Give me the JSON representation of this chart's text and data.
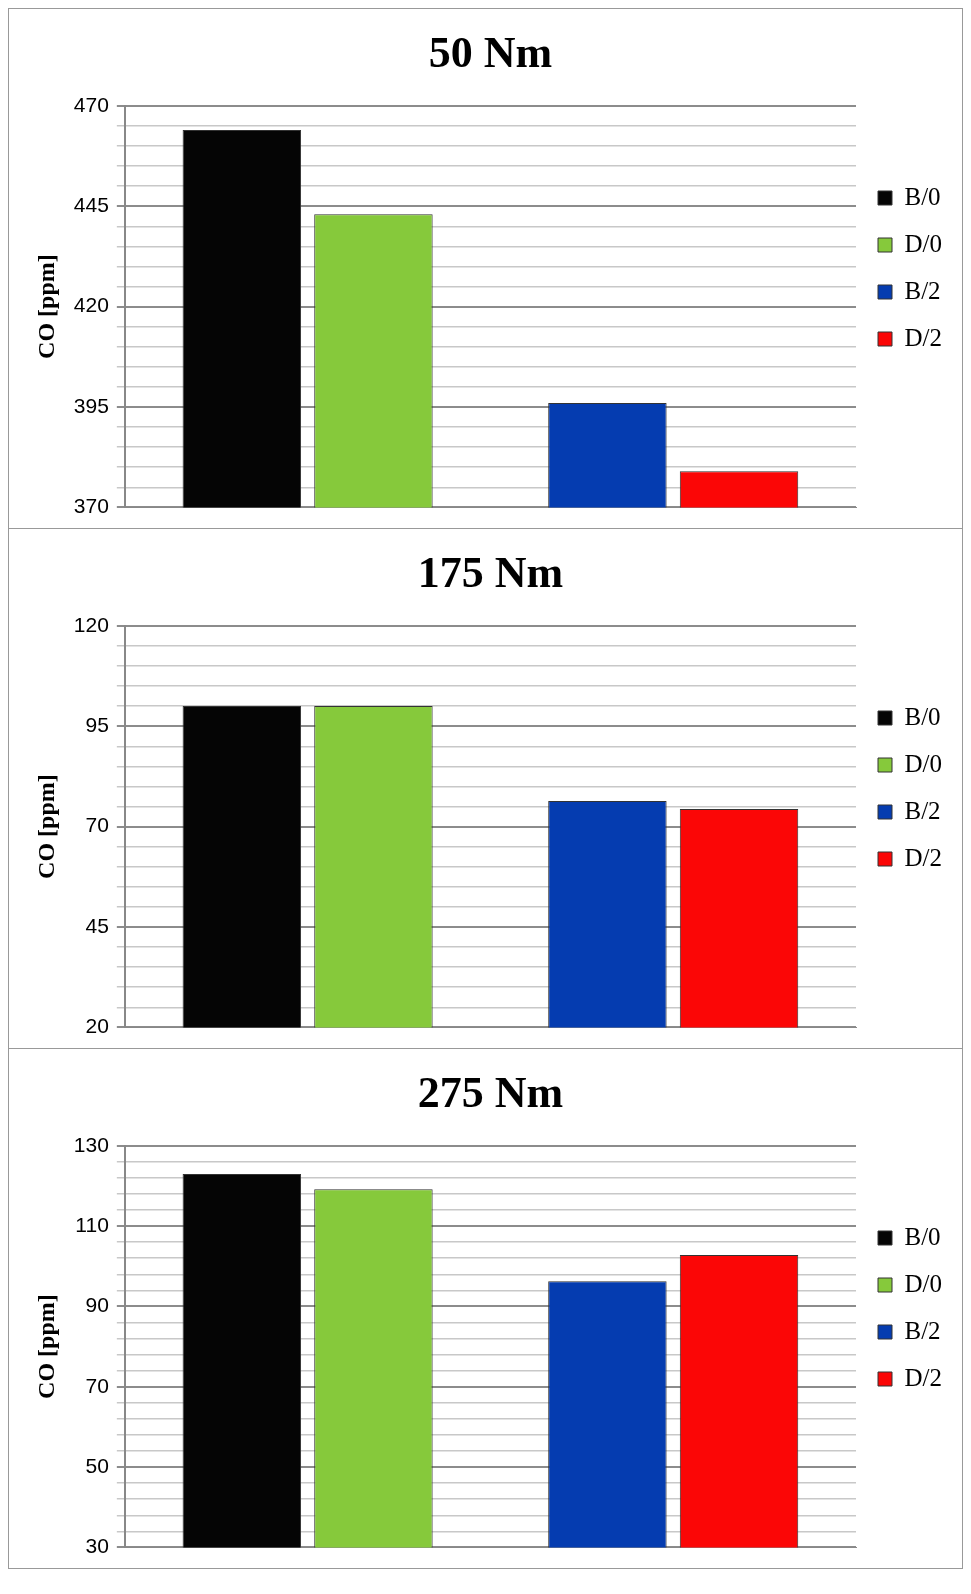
{
  "chart_data": [
    {
      "type": "bar",
      "title": "50 Nm",
      "ylabel": "CO [ppm]",
      "categories": [
        null,
        null
      ],
      "series": [
        {
          "name": "B/0",
          "color": "#050505",
          "values": [
            464,
            null
          ]
        },
        {
          "name": "D/0",
          "color": "#86c93b",
          "values": [
            443,
            null
          ]
        },
        {
          "name": "B/2",
          "color": "#053cb0",
          "values": [
            null,
            396
          ]
        },
        {
          "name": "D/2",
          "color": "#fb0606",
          "values": [
            null,
            379
          ]
        }
      ],
      "ylim": [
        370,
        470
      ],
      "yticks": [
        370,
        {
          "value": 375,
          "label": null
        },
        {
          "value": 380,
          "label": null
        },
        {
          "value": 385,
          "label": null
        },
        {
          "value": 390,
          "label": null
        },
        395,
        {
          "value": 400,
          "label": null
        },
        {
          "value": 405,
          "label": null
        },
        {
          "value": 410,
          "label": null
        },
        {
          "value": 415,
          "label": null
        },
        420,
        {
          "value": 425,
          "label": null
        },
        {
          "value": 430,
          "label": null
        },
        {
          "value": 435,
          "label": null
        },
        {
          "value": 440,
          "label": null
        },
        445,
        {
          "value": 450,
          "label": null
        },
        {
          "value": 455,
          "label": null
        },
        {
          "value": 460,
          "label": null
        },
        {
          "value": 465,
          "label": null
        },
        470
      ],
      "grid": "y",
      "legend": "right"
    },
    {
      "type": "bar",
      "title": "175 Nm",
      "ylabel": "CO [ppm]",
      "categories": [
        null,
        null
      ],
      "series": [
        {
          "name": "B/0",
          "color": "#050505",
          "values": [
            100,
            null
          ]
        },
        {
          "name": "D/0",
          "color": "#86c93b",
          "values": [
            100,
            null
          ]
        },
        {
          "name": "B/2",
          "color": "#053cb0",
          "values": [
            null,
            76.4
          ]
        },
        {
          "name": "D/2",
          "color": "#fb0606",
          "values": [
            null,
            74.4
          ]
        }
      ],
      "ylim": [
        20,
        120
      ],
      "yticks": [
        20,
        {
          "value": 25,
          "label": null
        },
        {
          "value": 30,
          "label": null
        },
        {
          "value": 35,
          "label": null
        },
        {
          "value": 40,
          "label": null
        },
        45,
        {
          "value": 50,
          "label": null
        },
        {
          "value": 55,
          "label": null
        },
        {
          "value": 60,
          "label": null
        },
        {
          "value": 65,
          "label": null
        },
        70,
        {
          "value": 75,
          "label": null
        },
        {
          "value": 80,
          "label": null
        },
        {
          "value": 85,
          "label": null
        },
        {
          "value": 90,
          "label": null
        },
        95,
        {
          "value": 100,
          "label": null
        },
        {
          "value": 105,
          "label": null
        },
        {
          "value": 110,
          "label": null
        },
        {
          "value": 115,
          "label": null
        },
        120
      ],
      "grid": "y",
      "legend": "right"
    },
    {
      "type": "bar",
      "title": "275 Nm",
      "ylabel": "CO [ppm]",
      "categories": [
        null,
        null
      ],
      "series": [
        {
          "name": "B/0",
          "color": "#050505",
          "values": [
            123,
            null
          ]
        },
        {
          "name": "D/0",
          "color": "#86c93b",
          "values": [
            119.2,
            null
          ]
        },
        {
          "name": "B/2",
          "color": "#053cb0",
          "values": [
            null,
            96.3
          ]
        },
        {
          "name": "D/2",
          "color": "#fb0606",
          "values": [
            null,
            102.8
          ]
        }
      ],
      "ylim": [
        30,
        130
      ],
      "yticks": [
        30,
        {
          "value": 34,
          "label": null
        },
        {
          "value": 38,
          "label": null
        },
        {
          "value": 42,
          "label": null
        },
        {
          "value": 46,
          "label": null
        },
        50,
        {
          "value": 54,
          "label": null
        },
        {
          "value": 58,
          "label": null
        },
        {
          "value": 62,
          "label": null
        },
        {
          "value": 66,
          "label": null
        },
        70,
        {
          "value": 74,
          "label": null
        },
        {
          "value": 78,
          "label": null
        },
        {
          "value": 82,
          "label": null
        },
        {
          "value": 86,
          "label": null
        },
        90,
        {
          "value": 94,
          "label": null
        },
        {
          "value": 98,
          "label": null
        },
        {
          "value": 102,
          "label": null
        },
        {
          "value": 106,
          "label": null
        },
        110,
        {
          "value": 114,
          "label": null
        },
        {
          "value": 118,
          "label": null
        },
        {
          "value": 122,
          "label": null
        },
        {
          "value": 126,
          "label": null
        },
        130
      ],
      "grid": "y",
      "legend": "right"
    }
  ]
}
